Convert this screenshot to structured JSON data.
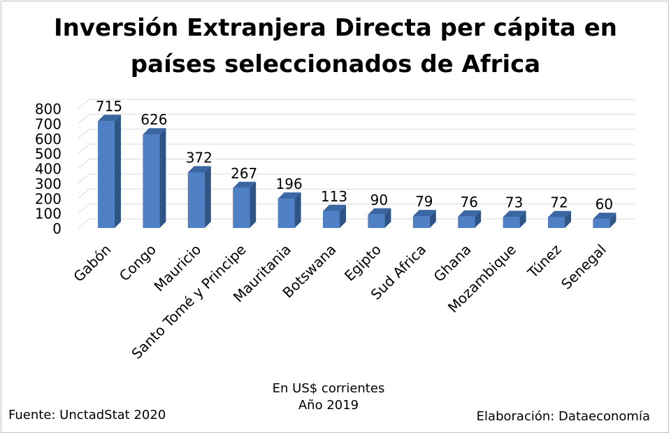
{
  "title_lines": [
    "Inversión Extranjera Directa per cápita en",
    "países seleccionados de Africa"
  ],
  "units_line1": "En US$ corrientes",
  "units_line2": "Año 2019",
  "source": "Fuente: UnctadStat 2020",
  "credit": "Elaboración: Dataeconomía",
  "colors": {
    "bar_front": "#4f7fc4",
    "bar_side": "#2f5587",
    "bar_top": "#3a66a3",
    "grid": "#d9d9d9"
  },
  "chart_data": {
    "type": "bar",
    "categories": [
      "Gabón",
      "Congo",
      "Mauricio",
      "Santo Tomé y Principe",
      "Mauritania",
      "Botswana",
      "Egipto",
      "Sud Africa",
      "Ghana",
      "Mozambique",
      "Túnez",
      "Senegal"
    ],
    "values": [
      715,
      626,
      372,
      267,
      196,
      113,
      90,
      79,
      76,
      73,
      72,
      60
    ],
    "ylim": [
      0,
      800
    ],
    "yticks": [
      0,
      100,
      200,
      300,
      400,
      500,
      600,
      700,
      800
    ],
    "grid": true,
    "legend": false
  }
}
